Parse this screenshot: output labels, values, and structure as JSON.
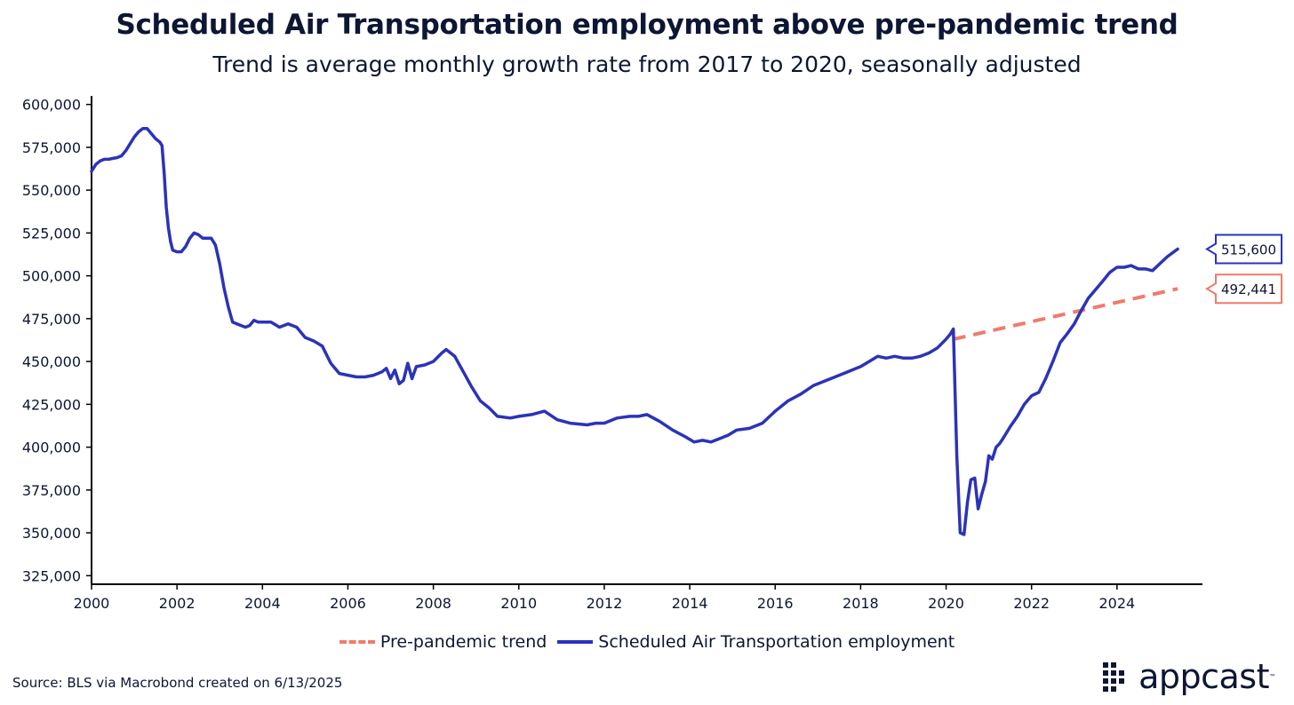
{
  "chart_data": {
    "type": "line",
    "title": "Scheduled Air Transportation employment above pre-pandemic trend",
    "subtitle": "Trend is average monthly growth rate from 2017 to 2020, seasonally adjusted",
    "xlabel": "",
    "ylabel": "",
    "xlim": [
      2000,
      2026
    ],
    "ylim": [
      320000,
      605000
    ],
    "x_ticks": [
      2000,
      2002,
      2004,
      2006,
      2008,
      2010,
      2012,
      2014,
      2016,
      2018,
      2020,
      2022,
      2024
    ],
    "x_tick_labels": [
      "2000",
      "2002",
      "2004",
      "2006",
      "2008",
      "2010",
      "2012",
      "2014",
      "2016",
      "2018",
      "2020",
      "2022",
      "2024"
    ],
    "y_ticks": [
      325000,
      350000,
      375000,
      400000,
      425000,
      450000,
      475000,
      500000,
      525000,
      550000,
      575000,
      600000
    ],
    "y_tick_labels": [
      "325,000",
      "350,000",
      "375,000",
      "400,000",
      "425,000",
      "450,000",
      "475,000",
      "500,000",
      "525,000",
      "550,000",
      "575,000",
      "600,000"
    ],
    "grid": false,
    "legend_position": "bottom",
    "series": [
      {
        "name": "Pre-pandemic trend",
        "style": "dashed",
        "color": "#f07b6a",
        "x": [
          2020.17,
          2025.42
        ],
        "y": [
          463000,
          492441
        ],
        "end_label": "492,441"
      },
      {
        "name": "Scheduled Air Transportation employment",
        "style": "solid",
        "color": "#2b33b8",
        "x": [
          2000.0,
          2000.1,
          2000.2,
          2000.3,
          2000.4,
          2000.5,
          2000.6,
          2000.7,
          2000.8,
          2000.9,
          2001.0,
          2001.1,
          2001.2,
          2001.3,
          2001.4,
          2001.5,
          2001.6,
          2001.65,
          2001.7,
          2001.75,
          2001.8,
          2001.85,
          2001.9,
          2002.0,
          2002.1,
          2002.2,
          2002.3,
          2002.4,
          2002.5,
          2002.6,
          2002.7,
          2002.8,
          2002.9,
          2003.0,
          2003.1,
          2003.2,
          2003.3,
          2003.4,
          2003.5,
          2003.6,
          2003.7,
          2003.8,
          2003.9,
          2004.0,
          2004.2,
          2004.4,
          2004.6,
          2004.8,
          2005.0,
          2005.2,
          2005.4,
          2005.6,
          2005.8,
          2006.0,
          2006.2,
          2006.4,
          2006.6,
          2006.8,
          2006.9,
          2007.0,
          2007.1,
          2007.2,
          2007.3,
          2007.4,
          2007.5,
          2007.6,
          2007.8,
          2008.0,
          2008.2,
          2008.3,
          2008.5,
          2008.7,
          2008.9,
          2009.1,
          2009.3,
          2009.5,
          2009.8,
          2010.0,
          2010.3,
          2010.6,
          2010.9,
          2011.2,
          2011.6,
          2011.8,
          2012.0,
          2012.3,
          2012.6,
          2012.8,
          2013.0,
          2013.3,
          2013.6,
          2013.9,
          2014.1,
          2014.3,
          2014.5,
          2014.7,
          2014.9,
          2015.1,
          2015.4,
          2015.7,
          2016.0,
          2016.3,
          2016.6,
          2016.9,
          2017.2,
          2017.5,
          2017.8,
          2017.9,
          2018.0,
          2018.2,
          2018.4,
          2018.6,
          2018.8,
          2019.0,
          2019.2,
          2019.4,
          2019.6,
          2019.8,
          2020.0,
          2020.1,
          2020.17,
          2020.25,
          2020.33,
          2020.42,
          2020.5,
          2020.58,
          2020.67,
          2020.75,
          2020.83,
          2020.92,
          2021.0,
          2021.08,
          2021.17,
          2021.25,
          2021.33,
          2021.5,
          2021.67,
          2021.83,
          2022.0,
          2022.17,
          2022.33,
          2022.5,
          2022.67,
          2022.83,
          2023.0,
          2023.17,
          2023.33,
          2023.5,
          2023.67,
          2023.83,
          2024.0,
          2024.17,
          2024.33,
          2024.5,
          2024.67,
          2024.83,
          2025.0,
          2025.17,
          2025.33,
          2025.42
        ],
        "y": [
          561000,
          565000,
          567000,
          568000,
          568000,
          568500,
          569000,
          570000,
          573000,
          577000,
          581000,
          584000,
          586000,
          586000,
          583000,
          580000,
          578000,
          576000,
          560000,
          540000,
          528000,
          520000,
          515000,
          514000,
          514000,
          517000,
          522000,
          525000,
          524000,
          522000,
          522000,
          522000,
          518000,
          507000,
          493000,
          482000,
          473000,
          472000,
          471000,
          470000,
          471000,
          474000,
          473000,
          473000,
          473000,
          470000,
          472000,
          470000,
          464000,
          462000,
          459000,
          449000,
          443000,
          442000,
          441000,
          441000,
          442000,
          444000,
          446000,
          440000,
          445000,
          437000,
          439000,
          449000,
          440000,
          447000,
          448000,
          450000,
          455000,
          457000,
          453000,
          444000,
          435000,
          427000,
          423000,
          418000,
          417000,
          418000,
          419000,
          421000,
          416000,
          414000,
          413000,
          414000,
          414000,
          417000,
          418000,
          418000,
          419000,
          415000,
          410000,
          406000,
          403000,
          404000,
          403000,
          405000,
          407000,
          410000,
          411000,
          414000,
          421000,
          427000,
          431000,
          436000,
          439000,
          442000,
          445000,
          446000,
          447000,
          450000,
          453000,
          452000,
          453000,
          452000,
          452000,
          453000,
          455000,
          458000,
          463000,
          466000,
          469000,
          395000,
          350000,
          349000,
          368000,
          381000,
          382000,
          364000,
          372000,
          380000,
          395000,
          393000,
          400000,
          402000,
          405000,
          412000,
          418000,
          425000,
          430000,
          432000,
          440000,
          450000,
          461000,
          466000,
          472000,
          480000,
          487000,
          492000,
          497000,
          502000,
          505000,
          505000,
          506000,
          504000,
          504000,
          503000,
          507000,
          511000,
          514000,
          515600
        ],
        "end_label": "515,600"
      }
    ]
  },
  "legend": {
    "items": [
      "Pre-pandemic trend",
      "Scheduled Air Transportation employment"
    ]
  },
  "source_note": "Source: BLS via Macrobond created on 6/13/2025",
  "brand": {
    "name": "appcast",
    "tm": "™"
  },
  "colors": {
    "series_line": "#2b33b8",
    "trend_line": "#f07b6a",
    "text": "#0d1633"
  }
}
